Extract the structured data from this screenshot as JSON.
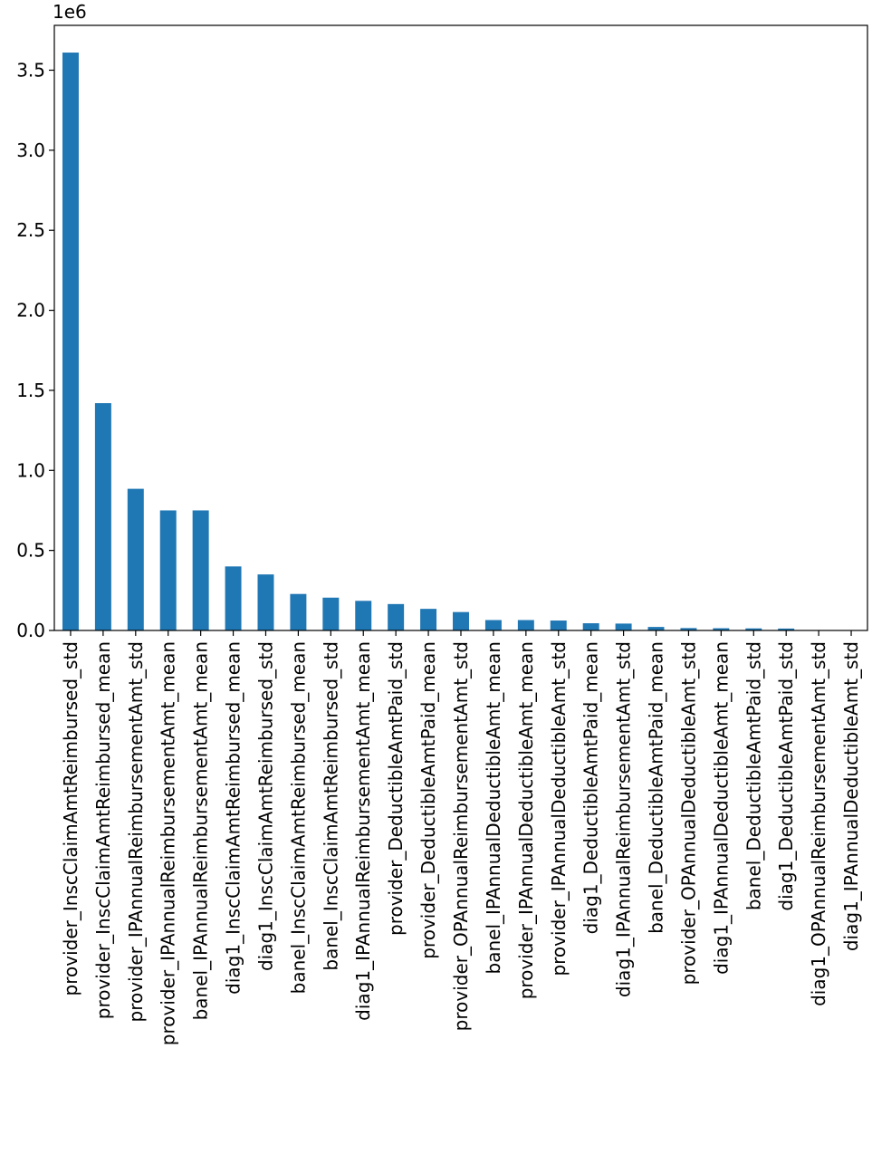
{
  "chart_data": {
    "type": "bar",
    "title": "",
    "xlabel": "",
    "ylabel": "",
    "offset_label": "1e6",
    "bar_color": "#1f77b4",
    "ylim": [
      0,
      3.78
    ],
    "yticks": [
      0.0,
      0.5,
      1.0,
      1.5,
      2.0,
      2.5,
      3.0,
      3.5
    ],
    "ytick_labels": [
      "0.0",
      "0.5",
      "1.0",
      "1.5",
      "2.0",
      "2.5",
      "3.0",
      "3.5"
    ],
    "grid": false,
    "legend": "none",
    "categories": [
      "provider_InscClaimAmtReimbursed_std",
      "provider_InscClaimAmtReimbursed_mean",
      "provider_IPAnnualReimbursementAmt_std",
      "provider_IPAnnualReimbursementAmt_mean",
      "banel_IPAnnualReimbursementAmt_mean",
      "diag1_InscClaimAmtReimbursed_mean",
      "diag1_InscClaimAmtReimbursed_std",
      "banel_InscClaimAmtReimbursed_mean",
      "banel_InscClaimAmtReimbursed_std",
      "diag1_IPAnnualReimbursementAmt_mean",
      "provider_DeductibleAmtPaid_std",
      "provider_DeductibleAmtPaid_mean",
      "provider_OPAnnualReimbursementAmt_std",
      "banel_IPAnnualDeductibleAmt_mean",
      "provider_IPAnnualDeductibleAmt_mean",
      "provider_IPAnnualDeductibleAmt_std",
      "diag1_DeductibleAmtPaid_mean",
      "diag1_IPAnnualReimbursementAmt_std",
      "banel_DeductibleAmtPaid_mean",
      "provider_OPAnnualDeductibleAmt_std",
      "diag1_IPAnnualDeductibleAmt_mean",
      "banel_DeductibleAmtPaid_std",
      "diag1_DeductibleAmtPaid_std",
      "diag1_OPAnnualReimbursementAmt_std",
      "diag1_IPAnnualDeductibleAmt_std"
    ],
    "values": [
      3.61,
      1.42,
      0.885,
      0.75,
      0.75,
      0.4,
      0.35,
      0.228,
      0.205,
      0.185,
      0.165,
      0.135,
      0.115,
      0.065,
      0.065,
      0.062,
      0.045,
      0.043,
      0.022,
      0.015,
      0.014,
      0.013,
      0.012,
      0.001,
      0.001
    ]
  }
}
